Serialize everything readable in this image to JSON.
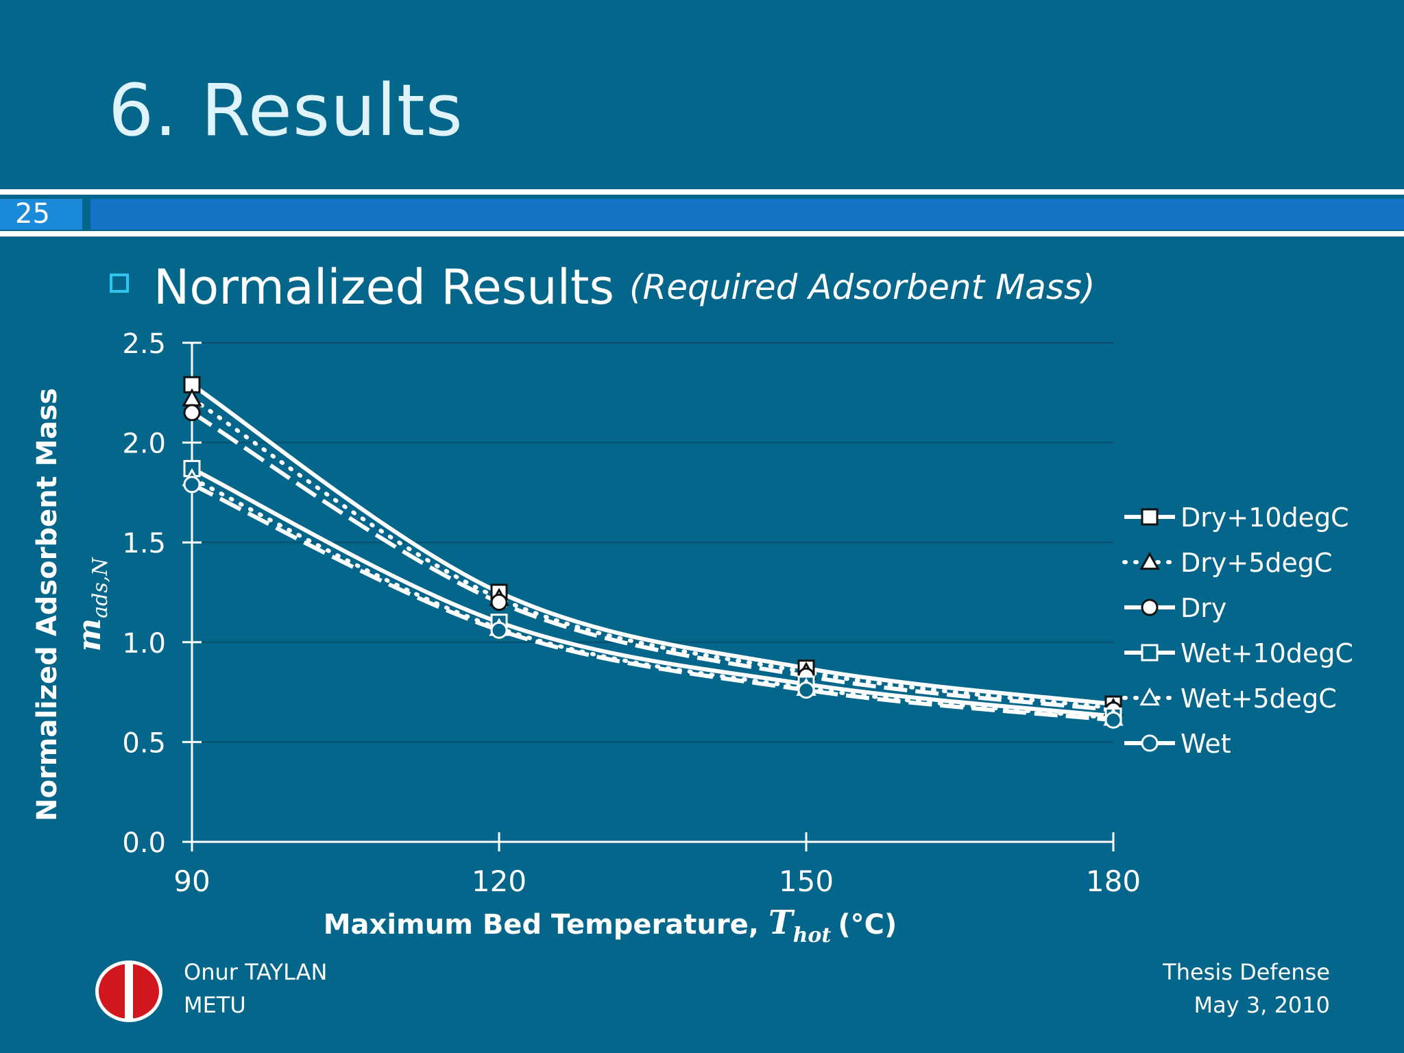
{
  "slide": {
    "title": "6. Results",
    "page_number": "25",
    "subtitle": "Normalized Results",
    "subtitle_note": "(Required Adsorbent Mass)"
  },
  "footer": {
    "author": "Onur TAYLAN",
    "institution": "METU",
    "event": "Thesis Defense",
    "date": "May 3, 2010"
  },
  "icons": {
    "bullet": "square-bullet-icon",
    "logo": "metu-logo"
  },
  "colors": {
    "background": "#03668a",
    "title": "#dff4fa",
    "accent_bar": "#1473c4",
    "page_box": "#1b8ad8",
    "bullet": "#2ec6ef",
    "series": "#ffffff"
  },
  "chart_data": {
    "type": "line",
    "ylabel": "Normalized Adsorbent Mass",
    "ylabel_symbol": "m",
    "ylabel_symbol_sub": "ads,N",
    "xlabel": "Maximum Bed Temperature,",
    "xlabel_symbol": "T",
    "xlabel_symbol_sub": "hot",
    "xlabel_unit": "(°C)",
    "x": [
      90,
      120,
      150,
      180
    ],
    "xlim": [
      90,
      180
    ],
    "ylim": [
      0,
      2.5
    ],
    "x_ticks": [
      "90",
      "120",
      "150",
      "180"
    ],
    "y_ticks": [
      "0.0",
      "0.5",
      "1.0",
      "1.5",
      "2.0",
      "2.5"
    ],
    "y_tick_values": [
      0,
      0.5,
      1.0,
      1.5,
      2.0,
      2.5
    ],
    "grid": true,
    "legend_position": "right",
    "series": [
      {
        "name": "Dry+10degC",
        "values": [
          2.29,
          1.25,
          0.87,
          0.69
        ],
        "line": "solid",
        "marker": "square",
        "filled": true
      },
      {
        "name": "Dry+5degC",
        "values": [
          2.22,
          1.22,
          0.85,
          0.67
        ],
        "line": "dotted",
        "marker": "triangle",
        "filled": true
      },
      {
        "name": "Dry",
        "values": [
          2.15,
          1.2,
          0.83,
          0.66
        ],
        "line": "dashed",
        "marker": "circle",
        "filled": true
      },
      {
        "name": "Wet+10degC",
        "values": [
          1.87,
          1.1,
          0.79,
          0.63
        ],
        "line": "solid",
        "marker": "square",
        "filled": false
      },
      {
        "name": "Wet+5degC",
        "values": [
          1.82,
          1.07,
          0.77,
          0.62
        ],
        "line": "dotted",
        "marker": "triangle",
        "filled": false
      },
      {
        "name": "Wet",
        "values": [
          1.79,
          1.06,
          0.76,
          0.61
        ],
        "line": "dashed",
        "marker": "circle",
        "filled": false
      }
    ]
  }
}
